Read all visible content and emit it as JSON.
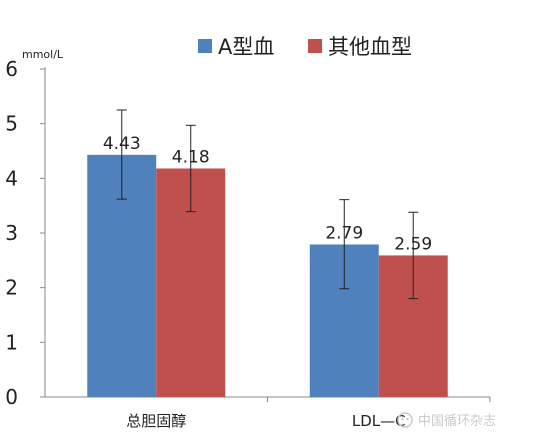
{
  "chart_data": {
    "type": "bar",
    "categories": [
      "总胆固醇",
      "LDL—C"
    ],
    "series": [
      {
        "name": "A型血",
        "values": [
          4.43,
          2.79
        ],
        "error": [
          [
            3.62,
            5.25
          ],
          [
            1.98,
            3.61
          ]
        ],
        "labels": [
          "4.43",
          "2.79"
        ],
        "color": "#4f81bd"
      },
      {
        "name": "其他血型",
        "values": [
          4.18,
          2.59
        ],
        "error": [
          [
            3.39,
            4.97
          ],
          [
            1.8,
            3.38
          ]
        ],
        "labels": [
          "4.18",
          "2.59"
        ],
        "color": "#c0504d"
      }
    ],
    "ylabel": "mmol/L",
    "ylim": [
      0,
      6
    ],
    "yticks": [
      "0",
      "1",
      "2",
      "3",
      "4",
      "5",
      "6"
    ],
    "grid": false,
    "legend": "top"
  },
  "watermark": "中国循环杂志"
}
